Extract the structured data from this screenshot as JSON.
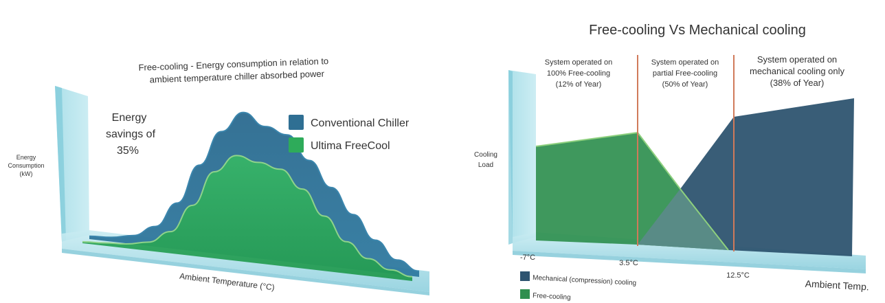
{
  "left_chart": {
    "title_line1": "Free-cooling - Energy consumption in relation to",
    "title_line2": "ambient temperature chiller absorbed power",
    "ylabel_line1": "Energy",
    "ylabel_line2": "Consumption",
    "ylabel_line3": "(kW)",
    "xlabel": "Ambient Temperature (°C)",
    "annotation_line1": "Energy",
    "annotation_line2": "savings of",
    "annotation_line3": "35%",
    "legend": [
      {
        "label": "Conventional Chiller",
        "color": "#2f6f93"
      },
      {
        "label": "Ultima FreeCool",
        "color": "#2eab5a"
      }
    ]
  },
  "right_chart": {
    "title": "Free-cooling Vs Mechanical cooling",
    "ylabel_line1": "Cooling",
    "ylabel_line2": "Load",
    "xlabel": "Ambient Temp.",
    "tick_labels": [
      "-7°C",
      "3.5°C",
      "12.5°C"
    ],
    "zones": [
      {
        "line1": "System operated on",
        "line2": "100% Free-cooling",
        "line3": "(12% of Year)"
      },
      {
        "line1": "System operated on",
        "line2": "partial Free-cooling",
        "line3": "(50% of Year)"
      },
      {
        "line1": "System operated on",
        "line2": "mechanical cooling only",
        "line3": "(38% of Year)"
      }
    ],
    "legend": [
      {
        "label": "Mechanical (compression) cooling",
        "color": "#2e5470"
      },
      {
        "label": "Free-cooling",
        "color": "#2f8f4f"
      }
    ]
  },
  "chart_data": [
    {
      "type": "area",
      "title": "Free-cooling - Energy consumption in relation to ambient temperature chiller absorbed power",
      "xlabel": "Ambient Temperature (°C)",
      "ylabel": "Energy Consumption (kW)",
      "series": [
        {
          "name": "Conventional Chiller",
          "values": [
            2,
            3,
            6,
            14,
            32,
            60,
            85,
            100,
            92,
            88,
            72,
            55,
            38,
            22,
            10,
            4
          ]
        },
        {
          "name": "Ultima FreeCool",
          "values": [
            1,
            2,
            3,
            6,
            15,
            35,
            60,
            73,
            70,
            67,
            55,
            38,
            22,
            12,
            6,
            3
          ]
        }
      ],
      "annotations": [
        "Energy savings of 35%"
      ]
    },
    {
      "type": "area",
      "title": "Free-cooling Vs Mechanical cooling",
      "xlabel": "Ambient Temp.",
      "ylabel": "Cooling Load",
      "x": [
        "-7°C",
        "3.5°C",
        "12.5°C"
      ],
      "series": [
        {
          "name": "Free-cooling"
        },
        {
          "name": "Mechanical (compression) cooling"
        }
      ],
      "annotations": [
        "System operated on 100% Free-cooling (12% of Year)",
        "System operated on partial Free-cooling (50% of Year)",
        "System operated on mechanical cooling only (38% of Year)"
      ]
    }
  ]
}
